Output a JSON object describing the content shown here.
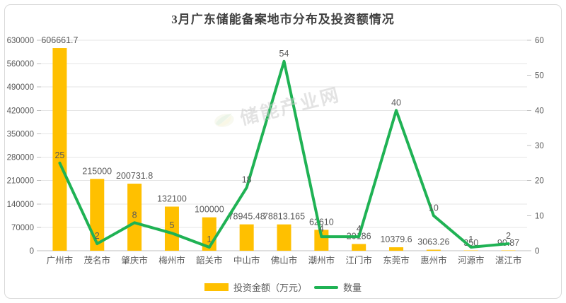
{
  "title": "3月广东储能备案地市分布及投资额情况",
  "watermark": {
    "text": "储能产业网"
  },
  "legend": [
    {
      "label": "投资金额（万元）",
      "type": "bar",
      "color": "#FFC000"
    },
    {
      "label": "数量",
      "type": "line",
      "color": "#1FB254"
    }
  ],
  "colors": {
    "bar": "#FFC000",
    "line": "#1FB254",
    "grid": "#e5e5e5",
    "axis_line": "#bfbfbf",
    "tick": "#bfbfbf",
    "axis_text": "#595959",
    "label_text": "#595959",
    "title_text": "#404040"
  },
  "chart_data": {
    "type": "bar",
    "subtype": "combo-bar-line-dual-axis",
    "title": "3月广东储能备案地市分布及投资额情况",
    "categories": [
      "广州市",
      "茂名市",
      "肇庆市",
      "梅州市",
      "韶关市",
      "中山市",
      "佛山市",
      "潮州市",
      "江门市",
      "东莞市",
      "惠州市",
      "河源市",
      "湛江市"
    ],
    "series": [
      {
        "name": "投资金额（万元）",
        "type": "bar",
        "axis": "left",
        "values": [
          606661.7,
          215000,
          200731.8,
          132100,
          100000,
          78945.48,
          78813.165,
          62610,
          20186,
          10379.6,
          3063.26,
          350,
          90.87
        ]
      },
      {
        "name": "数量",
        "type": "line",
        "axis": "right",
        "values": [
          25,
          2,
          8,
          5,
          1,
          18,
          54,
          4,
          4,
          40,
          10,
          1,
          2
        ]
      }
    ],
    "left_axis": {
      "min": 0,
      "max": 630000,
      "step": 70000
    },
    "right_axis": {
      "min": 0,
      "max": 60,
      "step": 10
    },
    "grid": true,
    "data_labels": true,
    "legend_position": "bottom"
  }
}
